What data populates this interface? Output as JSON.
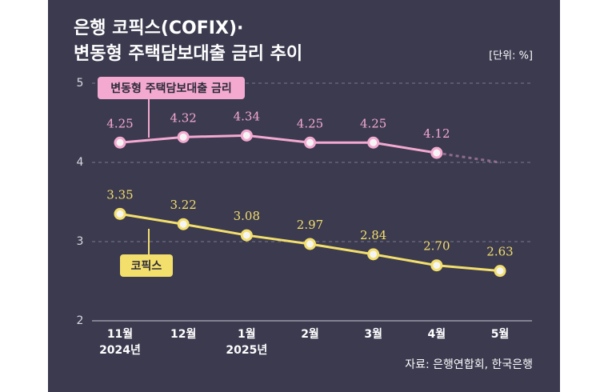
{
  "chart_data": {
    "type": "line",
    "title_lines": [
      "은행 코픽스(COFIX)·",
      "변동형 주택담보대출 금리 추이"
    ],
    "unit": "[단위: %]",
    "source": "자료: 은행연합회, 한국은행",
    "categories": [
      "11월",
      "12월",
      "1월",
      "2월",
      "3월",
      "4월",
      "5월"
    ],
    "x_sublabels": [
      "2024년",
      null,
      "2025년",
      null,
      null,
      null,
      null
    ],
    "series": [
      {
        "name": "변동형 주택담보대출 금리",
        "color": "#f4a9d0",
        "values": [
          4.25,
          4.32,
          4.34,
          4.25,
          4.25,
          4.12,
          null
        ]
      },
      {
        "name": "코픽스",
        "color": "#f3df6c",
        "values": [
          3.35,
          3.22,
          3.08,
          2.97,
          2.84,
          2.7,
          2.63
        ],
        "value_labels": [
          "3.35",
          "3.22",
          "3.08",
          "2.97",
          "2.84",
          "2.70",
          "2.63"
        ]
      }
    ],
    "ylim": [
      2,
      5
    ],
    "yticks": [
      2,
      3,
      4,
      5
    ],
    "grid": true
  }
}
